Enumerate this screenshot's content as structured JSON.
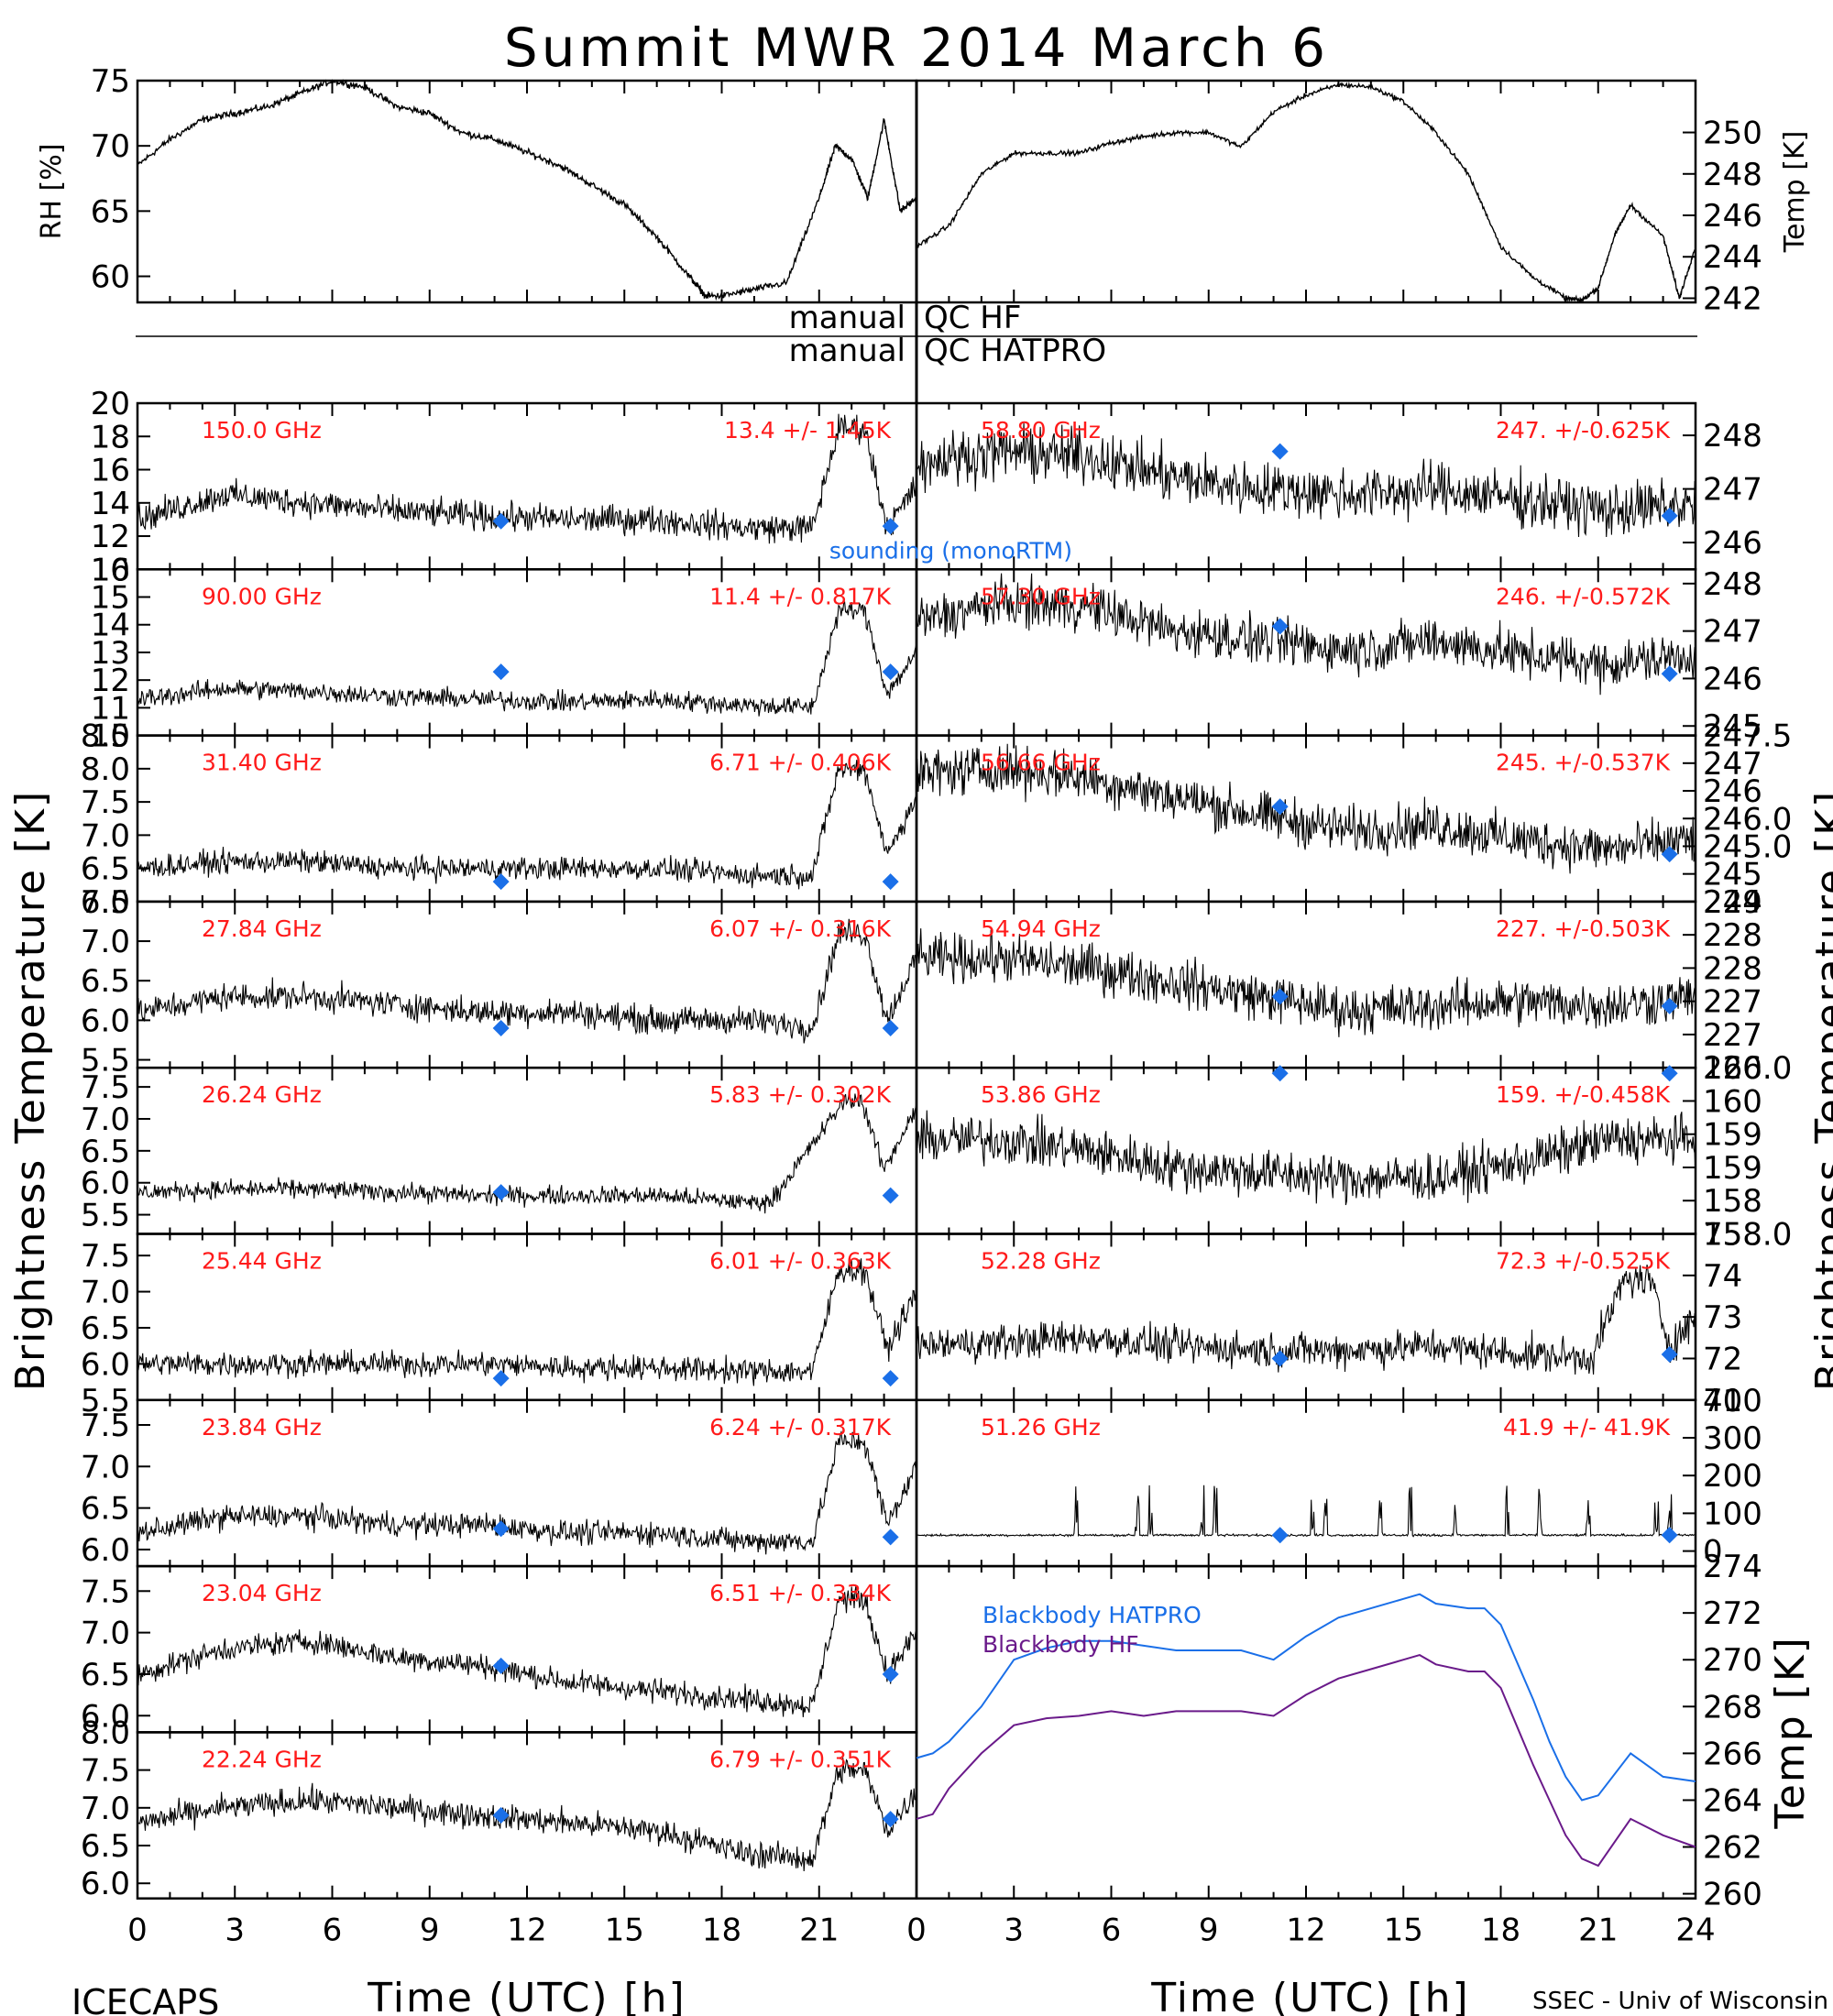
{
  "figure": {
    "title": "Summit MWR 2014 March  6",
    "left_ylabel": "Brightness Temperature [K]",
    "right_ylabel": "Brightness Temperature [K]",
    "xlabel_left": "Time (UTC) [h]",
    "xlabel_right": "Time (UTC) [h]",
    "footer_left": "ICECAPS",
    "footer_right": "SSEC - Univ of Wisconsin",
    "x_ticks": [
      "0",
      "3",
      "6",
      "9",
      "12",
      "15",
      "18",
      "21"
    ],
    "x_ticks_right": [
      "0",
      "3",
      "6",
      "9",
      "12",
      "15",
      "18",
      "21",
      "24"
    ],
    "qc_left_1": "manual",
    "qc_right_1": "QC HF",
    "qc_left_2": "manual",
    "qc_right_2": "QC HATPRO",
    "sounding_label": "sounding (monoRTM)"
  },
  "chart_data": [
    {
      "type": "line",
      "panel": "rh",
      "ylabel": "RH [%]",
      "ylim": [
        58,
        75
      ],
      "yticks": [
        "60",
        "65",
        "70",
        "75"
      ],
      "x": [
        0,
        1,
        2,
        3,
        4,
        5,
        6,
        7,
        8,
        9,
        10,
        11,
        12,
        13,
        14,
        15,
        16,
        17,
        17.5,
        18,
        19,
        20,
        21,
        21.5,
        22,
        22.5,
        23,
        23.5,
        24
      ],
      "y": [
        68.5,
        70.5,
        72,
        72.5,
        73,
        74,
        75,
        74.5,
        73,
        72.5,
        71,
        70.5,
        69.5,
        68.5,
        67,
        65.5,
        63,
        60,
        58.5,
        58.5,
        59,
        59.5,
        66,
        70,
        69,
        66,
        72,
        65,
        66
      ]
    },
    {
      "type": "line",
      "panel": "temp",
      "ylabel": "Temp [K]",
      "ylim": [
        241.8,
        252.5
      ],
      "yticks": [
        "242",
        "244",
        "246",
        "248",
        "250"
      ],
      "x": [
        0,
        1,
        2,
        3,
        4,
        5,
        6,
        7,
        8,
        9,
        10,
        11,
        12,
        13,
        14,
        15,
        16,
        17,
        18,
        19,
        20,
        20.5,
        21,
        21.5,
        22,
        23,
        23.5,
        24
      ],
      "y": [
        244.5,
        245.5,
        248,
        249,
        249,
        249,
        249.5,
        249.8,
        250,
        250,
        249.3,
        251,
        251.8,
        252.3,
        252.2,
        251.5,
        250,
        248,
        244.5,
        243,
        242,
        241.9,
        242.5,
        245,
        246.5,
        245,
        242,
        244.5
      ]
    },
    {
      "type": "scatter",
      "panel": "brightness",
      "side": "left",
      "freq_label": "150.0 GHz",
      "stat_label": "13.4 +/- 1.45K",
      "ylim": [
        10,
        20
      ],
      "yticks": [
        "10",
        "12",
        "14",
        "16",
        "18",
        "20"
      ],
      "yfmt": 0,
      "base": [
        13,
        14.5,
        14,
        13.5,
        13.2,
        13,
        13,
        12.5,
        12.5,
        12
      ],
      "noise": 0.6,
      "hump": {
        "start": 20.8,
        "peak": 21.6,
        "peak2": 22.4,
        "dip": 23.1,
        "level": 18.5,
        "dip_level": 12.5,
        "end_level": 15
      },
      "sounding": [
        {
          "x": 11.2,
          "y": 12.9
        },
        {
          "x": 23.2,
          "y": 12.6
        }
      ]
    },
    {
      "type": "scatter",
      "panel": "brightness",
      "side": "left",
      "freq_label": "90.00 GHz",
      "stat_label": "11.4 +/- 0.817K",
      "ylim": [
        10,
        16
      ],
      "yticks": [
        "10",
        "11",
        "12",
        "13",
        "14",
        "15",
        "16"
      ],
      "yfmt": 0,
      "base": [
        11.3,
        11.7,
        11.6,
        11.4,
        11.3,
        11.2,
        11.3,
        11.1,
        11,
        11
      ],
      "noise": 0.25,
      "hump": {
        "start": 20.8,
        "peak": 21.6,
        "peak2": 22.4,
        "dip": 23.1,
        "level": 14.5,
        "dip_level": 11.5,
        "end_level": 13
      },
      "sounding": [
        {
          "x": 11.2,
          "y": 12.3
        },
        {
          "x": 23.2,
          "y": 12.3
        }
      ]
    },
    {
      "type": "scatter",
      "panel": "brightness",
      "side": "left",
      "freq_label": "31.40 GHz",
      "stat_label": "6.71 +/- 0.406K",
      "ylim": [
        6,
        8.5
      ],
      "yticks": [
        "6.0",
        "6.5",
        "7.0",
        "7.5",
        "8.0",
        "8.5"
      ],
      "yfmt": 1,
      "base": [
        6.5,
        6.6,
        6.6,
        6.5,
        6.5,
        6.5,
        6.5,
        6.4,
        6.4,
        6.5
      ],
      "noise": 0.12,
      "hump": {
        "start": 20.8,
        "peak": 21.6,
        "peak2": 22.4,
        "dip": 23.1,
        "level": 8,
        "dip_level": 6.7,
        "end_level": 7.6
      },
      "sounding": [
        {
          "x": 11.2,
          "y": 6.3
        },
        {
          "x": 23.2,
          "y": 6.3
        }
      ]
    },
    {
      "type": "scatter",
      "panel": "brightness",
      "side": "left",
      "freq_label": "27.84 GHz",
      "stat_label": "6.07 +/- 0.316K",
      "ylim": [
        5.4,
        7.5
      ],
      "yticks": [
        "5.5",
        "6.0",
        "6.5",
        "7.0",
        "7.5"
      ],
      "yfmt": 1,
      "base": [
        6.1,
        6.3,
        6.3,
        6.2,
        6.1,
        6.1,
        6.0,
        6.0,
        5.9,
        5.9
      ],
      "noise": 0.12,
      "hump": {
        "start": 20.8,
        "peak": 21.6,
        "peak2": 22.4,
        "dip": 23.1,
        "level": 7.1,
        "dip_level": 6,
        "end_level": 6.8
      },
      "sounding": [
        {
          "x": 11.2,
          "y": 5.9
        },
        {
          "x": 23.2,
          "y": 5.9
        }
      ]
    },
    {
      "type": "scatter",
      "panel": "brightness",
      "side": "left",
      "freq_label": "26.24 GHz",
      "stat_label": "5.83 +/- 0.302K",
      "ylim": [
        5.2,
        7.8
      ],
      "yticks": [
        "5.5",
        "6.0",
        "6.5",
        "7.0",
        "7.5"
      ],
      "yfmt": 1,
      "base": [
        5.85,
        5.9,
        5.9,
        5.85,
        5.8,
        5.8,
        5.8,
        5.7,
        5.7,
        5.8
      ],
      "noise": 0.1,
      "hump": {
        "start": 19.5,
        "peak": 21.8,
        "peak2": 22.3,
        "dip": 23,
        "level": 7.3,
        "dip_level": 6.2,
        "end_level": 7.2
      },
      "sounding": [
        {
          "x": 11.2,
          "y": 5.85
        },
        {
          "x": 23.2,
          "y": 5.8
        }
      ]
    },
    {
      "type": "scatter",
      "panel": "brightness",
      "side": "left",
      "freq_label": "25.44 GHz",
      "stat_label": "6.01 +/- 0.363K",
      "ylim": [
        5.5,
        7.8
      ],
      "yticks": [
        "5.5",
        "6.0",
        "6.5",
        "7.0",
        "7.5"
      ],
      "yfmt": 1,
      "base": [
        6.0,
        6.0,
        6.0,
        6.0,
        6.0,
        5.95,
        5.95,
        5.9,
        5.9,
        6.0
      ],
      "noise": 0.12,
      "hump": {
        "start": 20.8,
        "peak": 21.6,
        "peak2": 22.4,
        "dip": 23.1,
        "level": 7.3,
        "dip_level": 6.2,
        "end_level": 7
      },
      "sounding": [
        {
          "x": 11.2,
          "y": 5.8
        },
        {
          "x": 23.2,
          "y": 5.8
        }
      ]
    },
    {
      "type": "scatter",
      "panel": "brightness",
      "side": "left",
      "freq_label": "23.84 GHz",
      "stat_label": "6.24 +/- 0.317K",
      "ylim": [
        5.8,
        7.8
      ],
      "yticks": [
        "6.0",
        "6.5",
        "7.0",
        "7.5"
      ],
      "yfmt": 1,
      "base": [
        6.2,
        6.4,
        6.4,
        6.3,
        6.3,
        6.2,
        6.2,
        6.1,
        6.1,
        6.1
      ],
      "noise": 0.1,
      "hump": {
        "start": 20.8,
        "peak": 21.6,
        "peak2": 22.4,
        "dip": 23.1,
        "level": 7.3,
        "dip_level": 6.3,
        "end_level": 7
      },
      "sounding": [
        {
          "x": 11.2,
          "y": 6.25
        },
        {
          "x": 23.2,
          "y": 6.15
        }
      ]
    },
    {
      "type": "scatter",
      "panel": "brightness",
      "side": "left",
      "freq_label": "23.04 GHz",
      "stat_label": "6.51 +/- 0.334K",
      "ylim": [
        5.8,
        7.8
      ],
      "yticks": [
        "6.0",
        "6.5",
        "7.0",
        "7.5"
      ],
      "yfmt": 1,
      "base": [
        6.5,
        6.8,
        6.9,
        6.7,
        6.6,
        6.4,
        6.3,
        6.2,
        6.1,
        6.3
      ],
      "noise": 0.1,
      "hump": {
        "start": 20.8,
        "peak": 21.6,
        "peak2": 22.4,
        "dip": 23.1,
        "level": 7.4,
        "dip_level": 6.5,
        "end_level": 7
      },
      "sounding": [
        {
          "x": 11.2,
          "y": 6.6
        },
        {
          "x": 23.2,
          "y": 6.5
        }
      ]
    },
    {
      "type": "scatter",
      "panel": "brightness",
      "side": "left",
      "freq_label": "22.24 GHz",
      "stat_label": "6.79 +/- 0.351K",
      "ylim": [
        5.8,
        8
      ],
      "yticks": [
        "6.0",
        "6.5",
        "7.0",
        "7.5",
        "8.0"
      ],
      "yfmt": 1,
      "base": [
        6.8,
        7.0,
        7.1,
        7.0,
        6.9,
        6.8,
        6.7,
        6.4,
        6.3,
        6.6
      ],
      "noise": 0.12,
      "hump": {
        "start": 20.8,
        "peak": 21.6,
        "peak2": 22.4,
        "dip": 23.1,
        "level": 7.5,
        "dip_level": 6.7,
        "end_level": 7.2
      },
      "sounding": [
        {
          "x": 11.2,
          "y": 6.9
        },
        {
          "x": 23.2,
          "y": 6.85
        }
      ]
    },
    {
      "type": "scatter",
      "panel": "brightness",
      "side": "right",
      "freq_label": "58.80 GHz",
      "stat_label": "247. +/-0.625K",
      "ylim": [
        245.5,
        248.6
      ],
      "yticks": [
        "246",
        "247",
        "248"
      ],
      "yfmt": 0,
      "base": [
        247.5,
        247.7,
        247.6,
        247.2,
        247.0,
        246.9,
        247.0,
        246.8,
        246.6,
        246.7
      ],
      "noise": 0.35,
      "sounding": [
        {
          "x": 11.2,
          "y": 247.7
        },
        {
          "x": 23.2,
          "y": 246.5
        }
      ]
    },
    {
      "type": "scatter",
      "panel": "brightness",
      "side": "right",
      "freq_label": "57.30 GHz",
      "stat_label": "246. +/-0.572K",
      "ylim": [
        244.8,
        248.3
      ],
      "yticks": [
        "245",
        "246",
        "247",
        "248"
      ],
      "yfmt": 0,
      "base": [
        247.2,
        247.6,
        247.5,
        247.0,
        246.8,
        246.6,
        246.8,
        246.5,
        246.3,
        246.5
      ],
      "noise": 0.35,
      "sounding": [
        {
          "x": 11.2,
          "y": 247.1
        },
        {
          "x": 23.2,
          "y": 246.1
        }
      ]
    },
    {
      "type": "scatter",
      "panel": "brightness",
      "side": "right",
      "freq_label": "56.66 GHz",
      "stat_label": "245. +/-0.537K",
      "ylim": [
        244,
        247.5
      ],
      "yticks": [
        "244",
        "245",
        "245.0",
        "246.0",
        "246",
        "247",
        "247.5"
      ],
      "yfmt": 1,
      "base": [
        246.7,
        246.8,
        246.6,
        246.2,
        245.8,
        245.5,
        245.6,
        245.3,
        245.1,
        245.3
      ],
      "noise": 0.35,
      "sounding": [
        {
          "x": 11.2,
          "y": 246.0
        },
        {
          "x": 23.2,
          "y": 245.0
        }
      ]
    },
    {
      "type": "scatter",
      "panel": "brightness",
      "side": "right",
      "freq_label": "54.94 GHz",
      "stat_label": "227. +/-0.503K",
      "ylim": [
        225.7,
        229.2
      ],
      "yticks": [
        "226",
        "227",
        "227",
        "228",
        "228",
        "229"
      ],
      "yfmt": 0,
      "base": [
        228.0,
        228.0,
        227.8,
        227.5,
        227.2,
        226.9,
        227.0,
        227.1,
        227.0,
        227.2
      ],
      "noise": 0.35,
      "sounding": [
        {
          "x": 11.2,
          "y": 227.2
        },
        {
          "x": 23.2,
          "y": 227.0
        }
      ]
    },
    {
      "type": "scatter",
      "panel": "brightness",
      "side": "right",
      "freq_label": "53.86 GHz",
      "stat_label": "159. +/-0.458K",
      "ylim": [
        157.6,
        160.6
      ],
      "yticks": [
        "158.0",
        "158",
        "159",
        "159",
        "160",
        "160.0"
      ],
      "yfmt": 1,
      "base": [
        159.3,
        159.3,
        159.1,
        158.8,
        158.7,
        158.6,
        158.6,
        158.9,
        159.3,
        159.3
      ],
      "noise": 0.3,
      "sounding": [
        {
          "x": 11.2,
          "y": 160.5
        },
        {
          "x": 23.2,
          "y": 160.5
        }
      ]
    },
    {
      "type": "scatter",
      "panel": "brightness",
      "side": "right",
      "freq_label": "52.28 GHz",
      "stat_label": "72.3 +/-0.525K",
      "ylim": [
        71,
        75
      ],
      "yticks": [
        "71",
        "72",
        "73",
        "74",
        "75"
      ],
      "yfmt": 0,
      "base": [
        72.3,
        72.4,
        72.5,
        72.3,
        72.2,
        72.2,
        72.3,
        72.1,
        72.0,
        72.2
      ],
      "noise": 0.3,
      "hump": {
        "start": 20.8,
        "peak": 21.8,
        "peak2": 22.6,
        "dip": 23.2,
        "level": 73.9,
        "dip_level": 72.3,
        "end_level": 73
      },
      "sounding": [
        {
          "x": 11.2,
          "y": 72.0
        },
        {
          "x": 23.2,
          "y": 72.1
        }
      ]
    },
    {
      "type": "scatter",
      "panel": "brightness",
      "side": "right",
      "freq_label": "51.26 GHz",
      "stat_label": "41.9 +/- 41.9K",
      "ylim": [
        -40,
        400
      ],
      "yticks": [
        "0",
        "100",
        "200",
        "300",
        "400"
      ],
      "yfmt": 0,
      "base": [
        42,
        42,
        42,
        42,
        42,
        42,
        42,
        42,
        42,
        42
      ],
      "noise": 2,
      "spikes": [
        4.9,
        6.8,
        7.2,
        8.8,
        9.2,
        12.2,
        12.6,
        14.3,
        15.2,
        16.6,
        18.2,
        19.2,
        20.7,
        22.8,
        23.2
      ],
      "sounding": [
        {
          "x": 11.2,
          "y": 42
        },
        {
          "x": 23.2,
          "y": 42
        }
      ]
    },
    {
      "type": "line",
      "panel": "blackbody",
      "ylabel": "Temp [K]",
      "ylim": [
        259.8,
        274
      ],
      "yticks": [
        "260",
        "262",
        "264",
        "266",
        "268",
        "270",
        "272",
        "274"
      ],
      "series": [
        {
          "name": "Blackbody HATPRO",
          "color": "#1a6fe8",
          "x": [
            0,
            0.5,
            1,
            2,
            3,
            4,
            5,
            6,
            7,
            8,
            9,
            10,
            11,
            12,
            13,
            14,
            15,
            15.5,
            16,
            17,
            17.5,
            18,
            19,
            19.5,
            20,
            20.5,
            21,
            22,
            23,
            24
          ],
          "y": [
            265.8,
            266,
            266.5,
            268,
            270,
            270.5,
            270.8,
            270.8,
            270.6,
            270.4,
            270.4,
            270.4,
            270,
            271,
            271.8,
            272.2,
            272.6,
            272.8,
            272.4,
            272.2,
            272.2,
            271.5,
            268.3,
            266.5,
            265,
            264,
            264.2,
            266,
            265,
            264.8
          ]
        },
        {
          "name": "Blackbody HF",
          "color": "#6a1a8a",
          "x": [
            0,
            0.5,
            1,
            2,
            3,
            4,
            5,
            6,
            7,
            8,
            9,
            10,
            11,
            12,
            13,
            14,
            15,
            15.5,
            16,
            17,
            17.5,
            18,
            19,
            19.5,
            20,
            20.5,
            21,
            22,
            23,
            24
          ],
          "y": [
            263.2,
            263.4,
            264.5,
            266,
            267.2,
            267.5,
            267.6,
            267.8,
            267.6,
            267.8,
            267.8,
            267.8,
            267.6,
            268.5,
            269.2,
            269.6,
            270,
            270.2,
            269.8,
            269.5,
            269.5,
            268.8,
            265.5,
            264,
            262.5,
            261.5,
            261.2,
            263.2,
            262.5,
            262
          ]
        }
      ]
    }
  ]
}
